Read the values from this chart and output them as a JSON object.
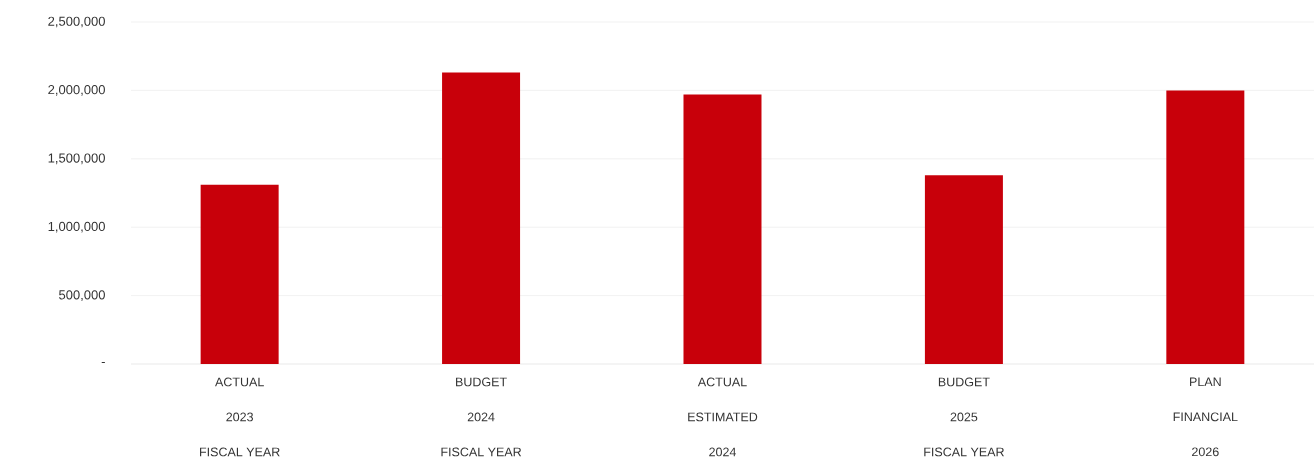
{
  "chart_data": {
    "type": "bar",
    "categories": [
      "ACTUAL\n2023\nFISCAL YEAR",
      "BUDGET\n2024\nFISCAL YEAR",
      "ACTUAL\nESTIMATED\n2024",
      "BUDGET\n2025\nFISCAL YEAR",
      "PLAN\nFINANCIAL\n2026"
    ],
    "values": [
      1310000,
      2130000,
      1970000,
      1380000,
      2000000
    ],
    "color": "#c8000a",
    "ylim": [
      0,
      2500000
    ],
    "yticks": [
      {
        "value": 0,
        "label": "-"
      },
      {
        "value": 500000,
        "label": "500,000"
      },
      {
        "value": 1000000,
        "label": "1,000,000"
      },
      {
        "value": 1500000,
        "label": "1,500,000"
      },
      {
        "value": 2000000,
        "label": "2,000,000"
      },
      {
        "value": 2500000,
        "label": "2,500,000"
      }
    ],
    "grid": "y"
  }
}
